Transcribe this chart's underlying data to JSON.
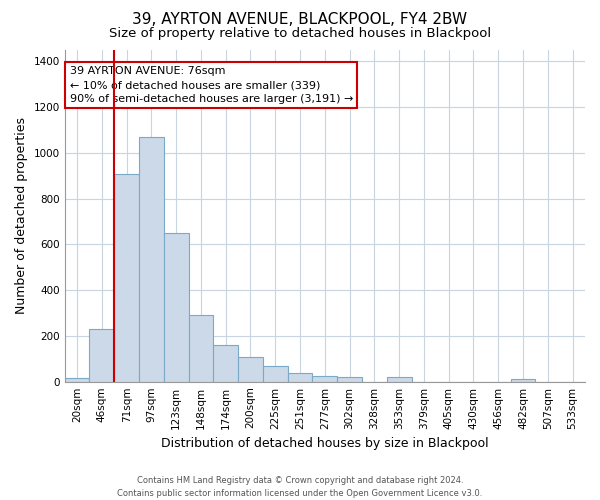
{
  "title": "39, AYRTON AVENUE, BLACKPOOL, FY4 2BW",
  "subtitle": "Size of property relative to detached houses in Blackpool",
  "xlabel": "Distribution of detached houses by size in Blackpool",
  "ylabel": "Number of detached properties",
  "bar_labels": [
    "20sqm",
    "46sqm",
    "71sqm",
    "97sqm",
    "123sqm",
    "148sqm",
    "174sqm",
    "200sqm",
    "225sqm",
    "251sqm",
    "277sqm",
    "302sqm",
    "328sqm",
    "353sqm",
    "379sqm",
    "405sqm",
    "430sqm",
    "456sqm",
    "482sqm",
    "507sqm",
    "533sqm"
  ],
  "bar_values": [
    15,
    230,
    910,
    1070,
    650,
    290,
    160,
    110,
    70,
    40,
    25,
    20,
    0,
    20,
    0,
    0,
    0,
    0,
    10,
    0,
    0
  ],
  "bar_color": "#ccd9e8",
  "bar_edge_color": "#7aaac8",
  "vline_color": "#cc0000",
  "vline_x": 2.5,
  "ylim": [
    0,
    1450
  ],
  "yticks": [
    0,
    200,
    400,
    600,
    800,
    1000,
    1200,
    1400
  ],
  "annotation_title": "39 AYRTON AVENUE: 76sqm",
  "annotation_line1": "← 10% of detached houses are smaller (339)",
  "annotation_line2": "90% of semi-detached houses are larger (3,191) →",
  "footer_line1": "Contains HM Land Registry data © Crown copyright and database right 2024.",
  "footer_line2": "Contains public sector information licensed under the Open Government Licence v3.0.",
  "background_color": "#ffffff",
  "grid_color": "#c8d4e0",
  "title_fontsize": 11,
  "subtitle_fontsize": 9.5,
  "axis_label_fontsize": 9,
  "tick_fontsize": 7.5,
  "annotation_fontsize": 8,
  "footer_fontsize": 6
}
